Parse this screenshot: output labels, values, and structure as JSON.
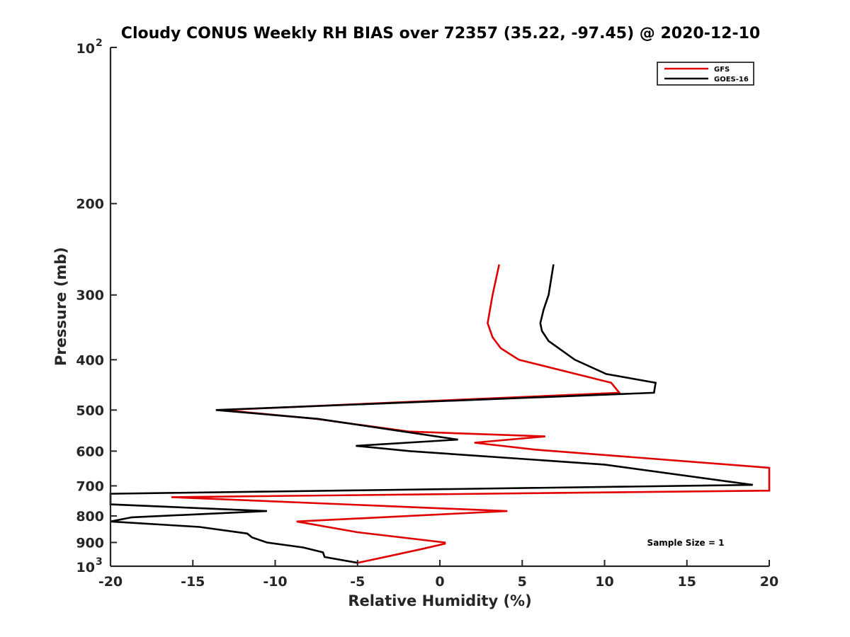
{
  "chart_data": {
    "type": "line",
    "title": "Cloudy CONUS Weekly RH BIAS over 72357 (35.22, -97.45) @ 2020-12-10",
    "xlabel": "Relative Humidity (%)",
    "ylabel": "Pressure (mb)",
    "xlim": [
      -20,
      20
    ],
    "ylim": [
      100,
      1000
    ],
    "y_scale": "log",
    "y_reversed": true,
    "x_ticks": [
      "-20",
      "-15",
      "-10",
      "-5",
      "0",
      "5",
      "10",
      "15",
      "20"
    ],
    "y_ticks": [
      {
        "value": 100,
        "base": "10",
        "exp": "2"
      },
      {
        "value": 200,
        "label": "200"
      },
      {
        "value": 300,
        "label": "300"
      },
      {
        "value": 400,
        "label": "400"
      },
      {
        "value": 500,
        "label": "500"
      },
      {
        "value": 600,
        "label": "600"
      },
      {
        "value": 700,
        "label": "700"
      },
      {
        "value": 800,
        "label": "800"
      },
      {
        "value": 900,
        "label": "900"
      },
      {
        "value": 1000,
        "base": "10",
        "exp": "3"
      }
    ],
    "grid": false,
    "legend_position": "top-right",
    "annotation": "Sample Size = 1",
    "series": [
      {
        "name": "GFS",
        "color": "#e00000",
        "points": [
          [
            3.6,
            262
          ],
          [
            3.2,
            300
          ],
          [
            2.9,
            340
          ],
          [
            3.2,
            362
          ],
          [
            3.7,
            380
          ],
          [
            4.8,
            400
          ],
          [
            10.4,
            443
          ],
          [
            10.9,
            463
          ],
          [
            -13.2,
            500
          ],
          [
            -7.5,
            520
          ],
          [
            -1.9,
            550
          ],
          [
            6.4,
            562
          ],
          [
            2.1,
            578
          ],
          [
            5.8,
            596
          ],
          [
            20,
            646
          ],
          [
            20,
            715
          ],
          [
            -16.3,
            736
          ],
          [
            4.1,
            783
          ],
          [
            -8.7,
            820
          ],
          [
            -5,
            860
          ],
          [
            0.3,
            900
          ],
          [
            0.3,
            905
          ],
          [
            -1,
            925
          ],
          [
            -3,
            955
          ],
          [
            -5,
            985
          ]
        ]
      },
      {
        "name": "GOES-16",
        "color": "#000000",
        "points": [
          [
            6.9,
            262
          ],
          [
            6.6,
            300
          ],
          [
            6.3,
            320
          ],
          [
            6.1,
            340
          ],
          [
            6.2,
            352
          ],
          [
            6.6,
            368
          ],
          [
            8.2,
            400
          ],
          [
            10.1,
            426
          ],
          [
            13.1,
            443
          ],
          [
            13,
            463
          ],
          [
            -13.6,
            500
          ],
          [
            -7.4,
            520
          ],
          [
            1.1,
            570
          ],
          [
            -5.1,
            586
          ],
          [
            -1.8,
            600
          ],
          [
            10,
            637
          ],
          [
            19,
            697
          ],
          [
            -20,
            725
          ],
          [
            -20,
            760
          ],
          [
            -10.5,
            783
          ],
          [
            -18.7,
            805
          ],
          [
            -20,
            820
          ],
          [
            -14.6,
            840
          ],
          [
            -11.7,
            865
          ],
          [
            -11.4,
            880
          ],
          [
            -10.5,
            900
          ],
          [
            -8.3,
            920
          ],
          [
            -7.1,
            940
          ],
          [
            -7,
            960
          ],
          [
            -5,
            985
          ]
        ]
      }
    ]
  }
}
